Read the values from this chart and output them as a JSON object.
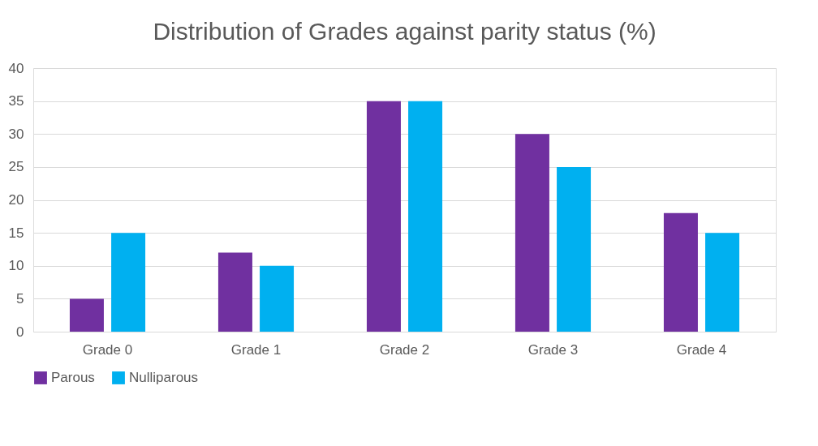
{
  "chart_data": {
    "type": "bar",
    "title": "Distribution of Grades against parity status (%)",
    "categories": [
      "Grade 0",
      "Grade 1",
      "Grade 2",
      "Grade 3",
      "Grade 4"
    ],
    "series": [
      {
        "name": "Parous",
        "color": "#7030a0",
        "values": [
          5,
          12,
          35,
          30,
          18
        ]
      },
      {
        "name": "Nulliparous",
        "color": "#00b0f0",
        "values": [
          15,
          10,
          35,
          25,
          15
        ]
      }
    ],
    "ylim": [
      0,
      40
    ],
    "yticks": [
      0,
      5,
      10,
      15,
      20,
      25,
      30,
      35,
      40
    ],
    "grid": "y",
    "legend": "bottom"
  }
}
